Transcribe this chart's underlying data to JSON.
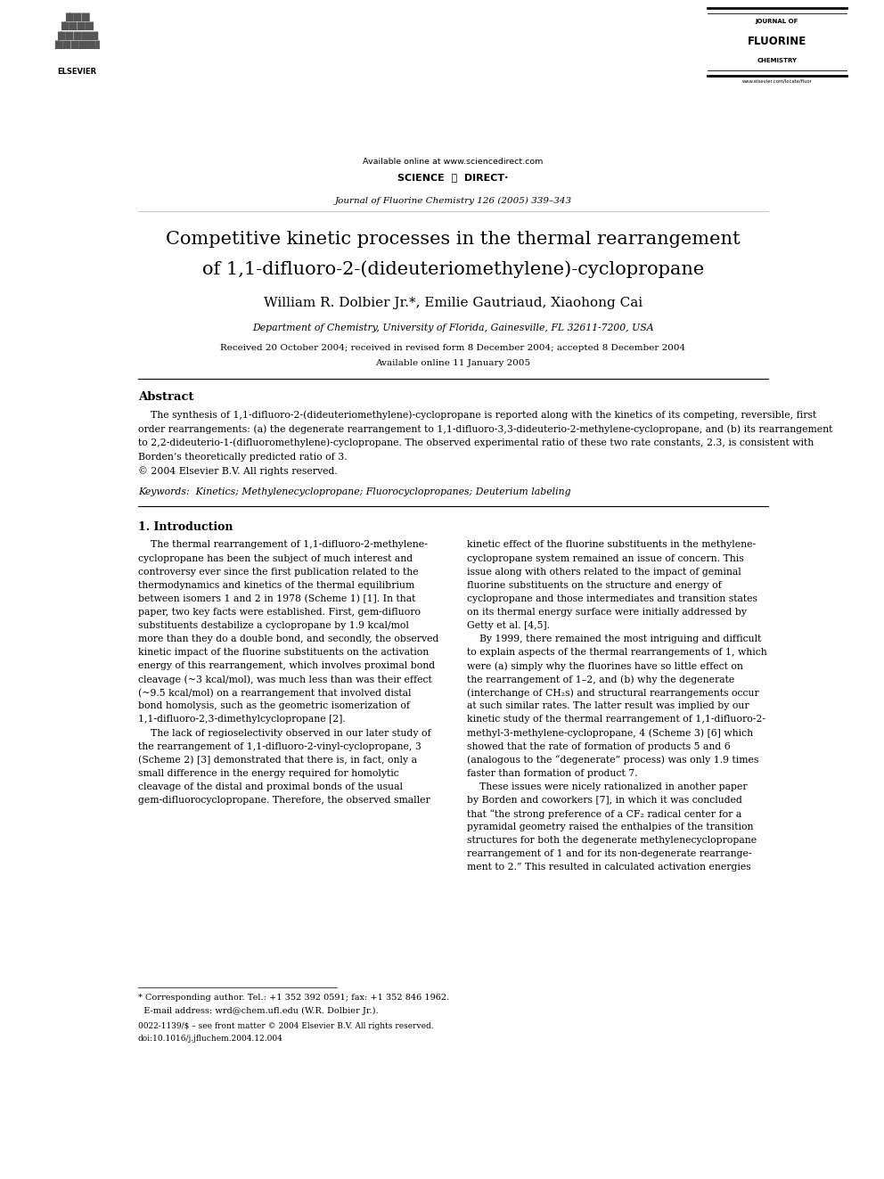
{
  "background_color": "#ffffff",
  "page_width": 9.92,
  "page_height": 13.23,
  "header_available_online": "Available online at www.sciencedirect.com",
  "header_journal_name": "Journal of Fluorine Chemistry 126 (2005) 339–343",
  "header_website": "www.elsevier.com/locate/fluor",
  "title_line1": "Competitive kinetic processes in the thermal rearrangement",
  "title_line2": "of 1,1-difluoro-2-(dideuteriomethylene)-cyclopropane",
  "authors": "William R. Dolbier Jr.*, Emilie Gautriaud, Xiaohong Cai",
  "affiliation": "Department of Chemistry, University of Florida, Gainesville, FL 32611-7200, USA",
  "received": "Received 20 October 2004; received in revised form 8 December 2004; accepted 8 December 2004",
  "available_online": "Available online 11 January 2005",
  "abstract_title": "Abstract",
  "keywords": "Keywords:  Kinetics; Methylenecyclopropane; Fluorocyclopropanes; Deuterium labeling",
  "section1_title": "1. Introduction",
  "footnote_star_1": "* Corresponding author. Tel.: +1 352 392 0591; fax: +1 352 846 1962.",
  "footnote_star_2": "  E-mail address: wrd@chem.ufl.edu (W.R. Dolbier Jr.).",
  "footer_1": "0022-1139/$ – see front matter © 2004 Elsevier B.V. All rights reserved.",
  "footer_2": "doi:10.1016/j.jfluchem.2004.12.004",
  "abstract_lines": [
    "    The synthesis of 1,1-difluoro-2-(dideuteriomethylene)-cyclopropane is reported along with the kinetics of its competing, reversible, first",
    "order rearrangements: (a) the degenerate rearrangement to 1,1-difluoro-3,3-dideuterio-2-methylene-cyclopropane, and (b) its rearrangement",
    "to 2,2-dideuterio-1-(difluoromethylene)-cyclopropane. The observed experimental ratio of these two rate constants, 2.3, is consistent with",
    "Borden’s theoretically predicted ratio of 3.",
    "© 2004 Elsevier B.V. All rights reserved."
  ],
  "col1_lines": [
    "    The thermal rearrangement of 1,1-difluoro-2-methylene-",
    "cyclopropane has been the subject of much interest and",
    "controversy ever since the first publication related to the",
    "thermodynamics and kinetics of the thermal equilibrium",
    "between isomers 1 and 2 in 1978 (Scheme 1) [1]. In that",
    "paper, two key facts were established. First, gem-difluoro",
    "substituents destabilize a cyclopropane by 1.9 kcal/mol",
    "more than they do a double bond, and secondly, the observed",
    "kinetic impact of the fluorine substituents on the activation",
    "energy of this rearrangement, which involves proximal bond",
    "cleavage (~3 kcal/mol), was much less than was their effect",
    "(~9.5 kcal/mol) on a rearrangement that involved distal",
    "bond homolysis, such as the geometric isomerization of",
    "1,1-difluoro-2,3-dimethylcyclopropane [2].",
    "    The lack of regioselectivity observed in our later study of",
    "the rearrangement of 1,1-difluoro-2-vinyl-cyclopropane, 3",
    "(Scheme 2) [3] demonstrated that there is, in fact, only a",
    "small difference in the energy required for homolytic",
    "cleavage of the distal and proximal bonds of the usual",
    "gem-difluorocyclopropane. Therefore, the observed smaller"
  ],
  "col2_lines": [
    "kinetic effect of the fluorine substituents in the methylene-",
    "cyclopropane system remained an issue of concern. This",
    "issue along with others related to the impact of geminal",
    "fluorine substituents on the structure and energy of",
    "cyclopropane and those intermediates and transition states",
    "on its thermal energy surface were initially addressed by",
    "Getty et al. [4,5].",
    "    By 1999, there remained the most intriguing and difficult",
    "to explain aspects of the thermal rearrangements of 1, which",
    "were (a) simply why the fluorines have so little effect on",
    "the rearrangement of 1–2, and (b) why the degenerate",
    "(interchange of CH₂s) and structural rearrangements occur",
    "at such similar rates. The latter result was implied by our",
    "kinetic study of the thermal rearrangement of 1,1-difluoro-2-",
    "methyl-3-methylene-cyclopropane, 4 (Scheme 3) [6] which",
    "showed that the rate of formation of products 5 and 6",
    "(analogous to the “degenerate” process) was only 1.9 times",
    "faster than formation of product 7.",
    "    These issues were nicely rationalized in another paper",
    "by Borden and coworkers [7], in which it was concluded",
    "that “the strong preference of a CF₂ radical center for a",
    "pyramidal geometry raised the enthalpies of the transition",
    "structures for both the degenerate methylenecyclopropane",
    "rearrangement of 1 and for its non-degenerate rearrange-",
    "ment to 2.” This resulted in calculated activation energies"
  ]
}
